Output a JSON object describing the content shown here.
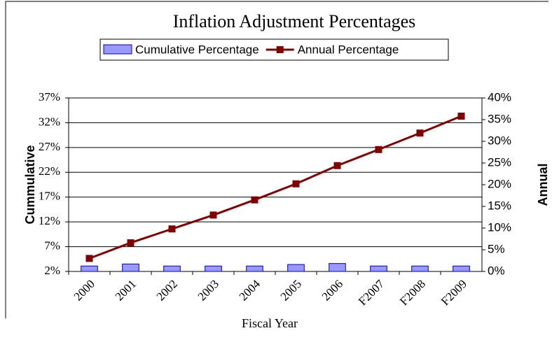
{
  "chart_data": {
    "type": "bar_line",
    "title": "Inflation Adjustment Percentages",
    "x_label": "Fiscal Year",
    "y_label": "Cummulative",
    "y2_label": "Annual",
    "categories": [
      "2000",
      "2001",
      "2002",
      "2003",
      "2004",
      "2005",
      "2006",
      "F2007",
      "F2008",
      "F2009"
    ],
    "series": [
      {
        "name": "Cumulative Percentage",
        "type": "bar",
        "color": "#9999ff",
        "values": [
          3.1,
          3.5,
          3.1,
          3.1,
          3.1,
          3.4,
          3.6,
          3.1,
          3.1,
          3.1
        ]
      },
      {
        "name": "Annual Percentage",
        "type": "line",
        "axis": "y2",
        "color": "#800000",
        "values": [
          3,
          6.6,
          9.8,
          13,
          16.5,
          20.2,
          24.4,
          28.1,
          31.9,
          35.8
        ]
      }
    ],
    "ylim": [
      2,
      37
    ],
    "yticks": [
      {
        "value": 2,
        "label": "2%"
      },
      {
        "value": 7,
        "label": "7%"
      },
      {
        "value": 12,
        "label": "12%"
      },
      {
        "value": 17,
        "label": "17%"
      },
      {
        "value": 22,
        "label": "22%"
      },
      {
        "value": 27,
        "label": "27%"
      },
      {
        "value": 32,
        "label": "32%"
      },
      {
        "value": 37,
        "label": "37%"
      }
    ],
    "y2lim": [
      0,
      40
    ],
    "y2ticks": [
      {
        "value": 0,
        "label": "0%"
      },
      {
        "value": 5,
        "label": "5%"
      },
      {
        "value": 10,
        "label": "10%"
      },
      {
        "value": 15,
        "label": "15%"
      },
      {
        "value": 20,
        "label": "20%"
      },
      {
        "value": 25,
        "label": "25%"
      },
      {
        "value": 30,
        "label": "30%"
      },
      {
        "value": 35,
        "label": "35%"
      },
      {
        "value": 40,
        "label": "40%"
      }
    ],
    "grid": true,
    "legend": "top"
  }
}
